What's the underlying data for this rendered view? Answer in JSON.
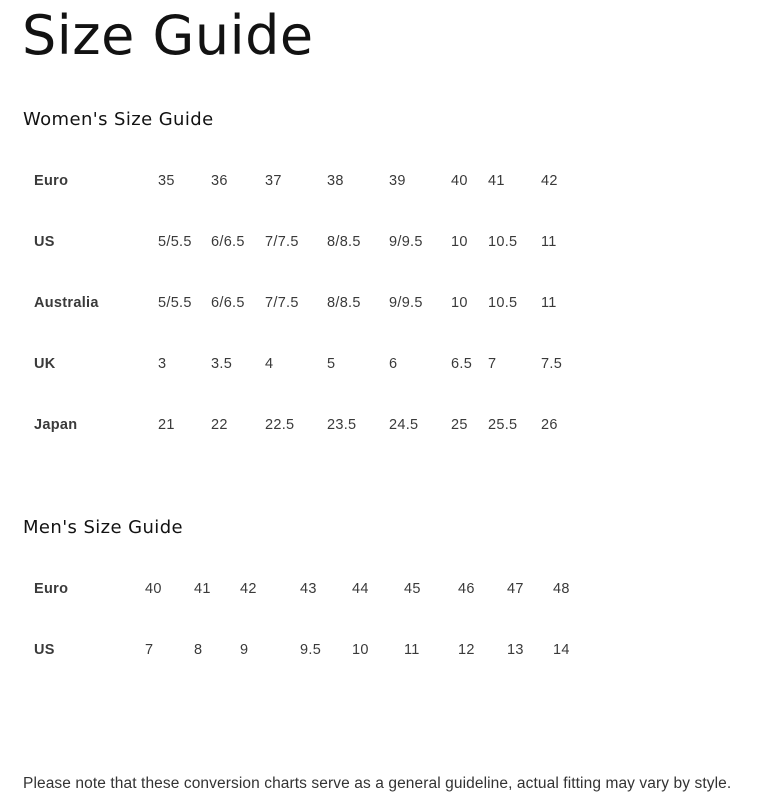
{
  "title": "Size Guide",
  "womens": {
    "heading": "Women's Size Guide",
    "rows": [
      {
        "label": "Euro",
        "values": [
          "35",
          "36",
          "37",
          "38",
          "39",
          "40",
          "41",
          "42"
        ]
      },
      {
        "label": "US",
        "values": [
          "5/5.5",
          "6/6.5",
          "7/7.5",
          "8/8.5",
          "9/9.5",
          "10",
          "10.5",
          "11"
        ]
      },
      {
        "label": "Australia",
        "values": [
          "5/5.5",
          "6/6.5",
          "7/7.5",
          "8/8.5",
          "9/9.5",
          "10",
          "10.5",
          "11"
        ]
      },
      {
        "label": "UK",
        "values": [
          "3",
          "3.5",
          "4",
          "5",
          "6",
          "6.5",
          "7",
          "7.5"
        ]
      },
      {
        "label": "Japan",
        "values": [
          "21",
          "22",
          "22.5",
          "23.5",
          "24.5",
          "25",
          "25.5",
          "26"
        ]
      }
    ]
  },
  "mens": {
    "heading": "Men's Size Guide",
    "rows": [
      {
        "label": "Euro",
        "values": [
          "40",
          "41",
          "42",
          "43",
          "44",
          "45",
          "46",
          "47",
          "48"
        ]
      },
      {
        "label": "US",
        "values": [
          "7",
          "8",
          "9",
          "9.5",
          "10",
          "11",
          "12",
          "13",
          "14"
        ]
      }
    ]
  },
  "note": "Please note that these conversion charts serve as a general guideline, actual fitting may vary by style."
}
